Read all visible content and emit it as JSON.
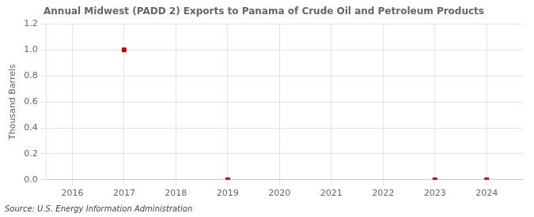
{
  "chart_data": {
    "type": "scatter",
    "title": "Annual Midwest (PADD 2) Exports to Panama of Crude Oil and Petroleum Products",
    "ylabel": "Thousand Barrels",
    "source": "Source: U.S. Energy Information Administration",
    "x": [
      2016,
      2017,
      2018,
      2019,
      2020,
      2021,
      2022,
      2023,
      2024
    ],
    "values": [
      null,
      1.0,
      null,
      0.0,
      null,
      null,
      null,
      0.0,
      0.0
    ],
    "color": "#cc0000",
    "marker": "square",
    "xlim": [
      2015.5,
      2024.7
    ],
    "xticks": [
      2016,
      2017,
      2018,
      2019,
      2020,
      2021,
      2022,
      2023,
      2024
    ],
    "ylim": [
      0.0,
      1.2
    ],
    "yticks": [
      {
        "value": 0.0,
        "label": "0.0"
      },
      0.2,
      0.4,
      0.6,
      0.8,
      {
        "value": 1.0,
        "label": "1.0"
      },
      1.2
    ],
    "grid": true
  }
}
